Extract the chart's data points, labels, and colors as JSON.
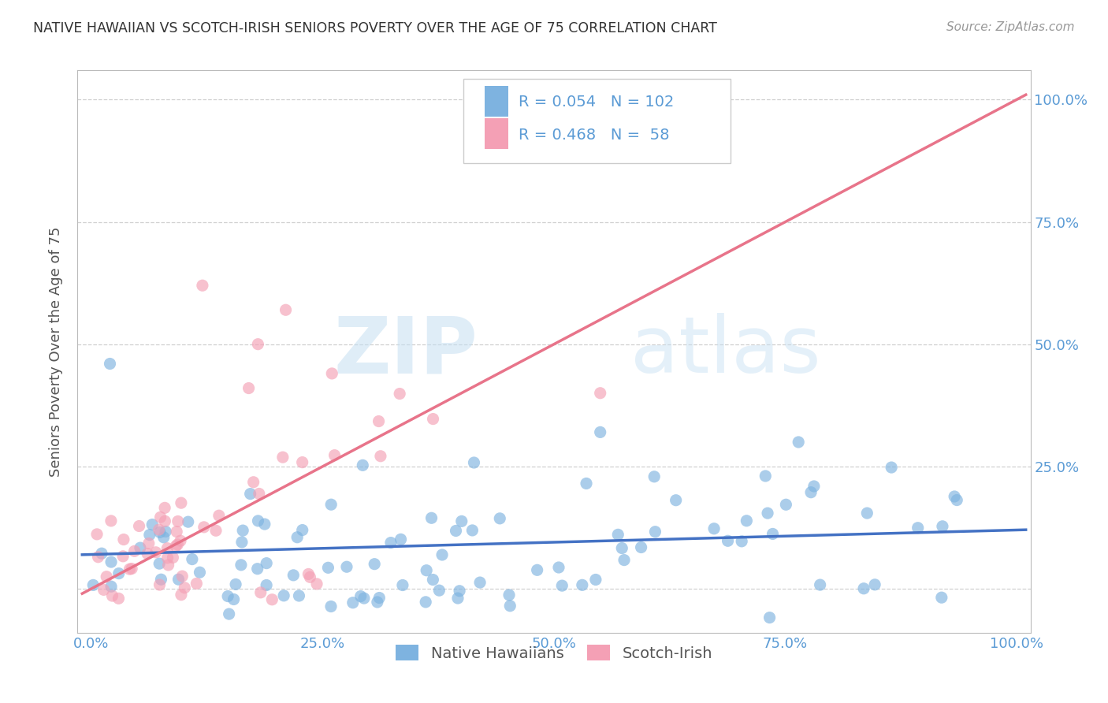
{
  "title": "NATIVE HAWAIIAN VS SCOTCH-IRISH SENIORS POVERTY OVER THE AGE OF 75 CORRELATION CHART",
  "source": "Source: ZipAtlas.com",
  "ylabel": "Seniors Poverty Over the Age of 75",
  "xticks": [
    0.0,
    0.25,
    0.5,
    0.75,
    1.0
  ],
  "xticklabels": [
    "0.0%",
    "25.0%",
    "50.0%",
    "75.0%",
    "100.0%"
  ],
  "yticks": [
    0.0,
    0.25,
    0.5,
    0.75,
    1.0
  ],
  "yticklabels": [
    "",
    "25.0%",
    "50.0%",
    "75.0%",
    "100.0%"
  ],
  "native_hawaiian_color": "#7eb3e0",
  "scotch_irish_color": "#f4a0b5",
  "native_hawaiian_R": 0.054,
  "native_hawaiian_N": 102,
  "scotch_irish_R": 0.468,
  "scotch_irish_N": 58,
  "native_hawaiian_line_color": "#4472c4",
  "scotch_irish_line_color": "#e8748a",
  "watermark_zip": "ZIP",
  "watermark_atlas": "atlas",
  "title_color": "#333333",
  "axis_tick_color": "#5b9bd5",
  "legend_label_1": "Native Hawaiians",
  "legend_label_2": "Scotch-Irish",
  "background_color": "#ffffff",
  "grid_color": "#d0d0d0",
  "nh_line_intercept": 0.07,
  "nh_line_slope": 0.05,
  "si_line_intercept": 0.0,
  "si_line_slope": 1.0
}
